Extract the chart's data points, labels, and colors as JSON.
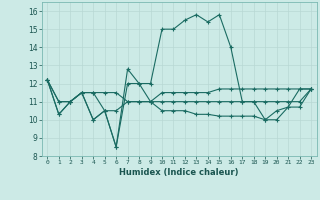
{
  "xlabel": "Humidex (Indice chaleur)",
  "ylabel": "",
  "background_color": "#cceae6",
  "grid_color": "#b8d8d4",
  "line_color": "#1a6b62",
  "xlim": [
    -0.5,
    23.5
  ],
  "ylim": [
    8,
    16.5
  ],
  "xticks": [
    0,
    1,
    2,
    3,
    4,
    5,
    6,
    7,
    8,
    9,
    10,
    11,
    12,
    13,
    14,
    15,
    16,
    17,
    18,
    19,
    20,
    21,
    22,
    23
  ],
  "yticks": [
    8,
    9,
    10,
    11,
    12,
    13,
    14,
    15,
    16
  ],
  "series": [
    [
      12.2,
      10.3,
      11.0,
      11.5,
      10.0,
      10.5,
      8.5,
      12.0,
      12.0,
      12.0,
      15.0,
      15.0,
      15.5,
      15.8,
      15.4,
      15.8,
      14.0,
      11.0,
      11.0,
      10.0,
      10.5,
      10.7,
      11.7,
      11.7
    ],
    [
      12.2,
      10.3,
      11.0,
      11.5,
      10.0,
      10.5,
      8.5,
      12.8,
      12.0,
      11.0,
      11.5,
      11.5,
      11.5,
      11.5,
      11.5,
      11.7,
      11.7,
      11.7,
      11.7,
      11.7,
      11.7,
      11.7,
      11.7,
      11.7
    ],
    [
      12.2,
      11.0,
      11.0,
      11.5,
      11.5,
      11.5,
      11.5,
      11.0,
      11.0,
      11.0,
      11.0,
      11.0,
      11.0,
      11.0,
      11.0,
      11.0,
      11.0,
      11.0,
      11.0,
      11.0,
      11.0,
      11.0,
      11.0,
      11.7
    ],
    [
      12.2,
      11.0,
      11.0,
      11.5,
      11.5,
      10.5,
      10.5,
      11.0,
      11.0,
      11.0,
      10.5,
      10.5,
      10.5,
      10.3,
      10.3,
      10.2,
      10.2,
      10.2,
      10.2,
      10.0,
      10.0,
      10.7,
      10.7,
      11.7
    ]
  ]
}
